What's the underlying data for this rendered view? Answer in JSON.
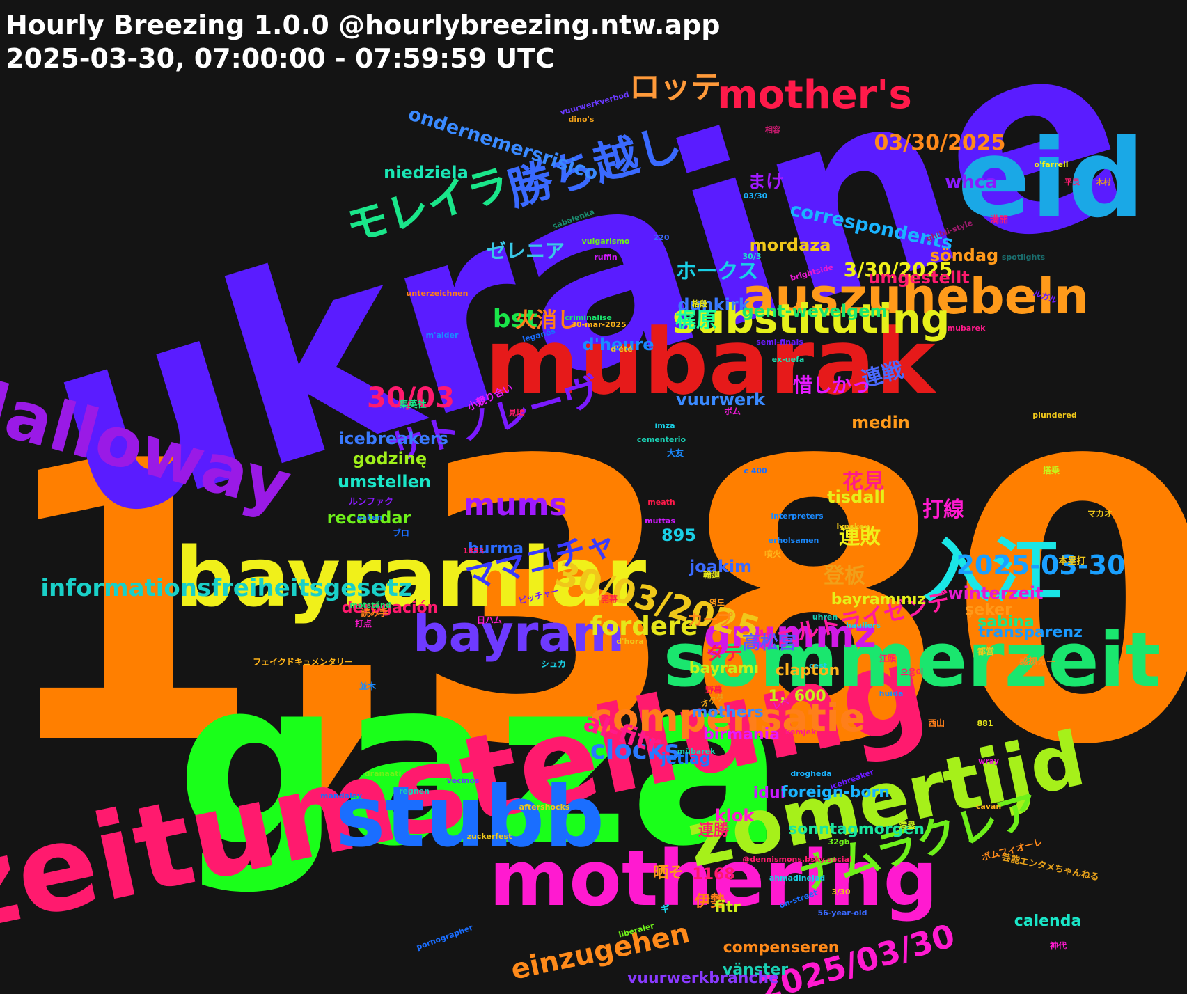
{
  "header": {
    "title": "Hourly Breezing 1.0.0 @hourlybreezing.ntw.app",
    "subtitle": "2025-03-30, 07:00:00 - 07:59:59 UTC"
  },
  "words": [
    {
      "text": "1,380",
      "color": "#ff7f00"
    },
    {
      "text": "ukraine",
      "color": "#5a1cff"
    },
    {
      "text": "gaza",
      "color": "#1aff1a"
    },
    {
      "text": "zeitumstellung",
      "color": "#ff1a6e"
    },
    {
      "text": "eid",
      "color": "#1aa8e6"
    },
    {
      "text": "mubarak",
      "color": "#e61a1a"
    },
    {
      "text": "bayramlar",
      "color": "#f0f01a"
    },
    {
      "text": "dalloway",
      "color": "#9a1ae6"
    },
    {
      "text": "sommerzeit",
      "color": "#1ae66e"
    },
    {
      "text": "mothering",
      "color": "#ff1ad0"
    },
    {
      "text": "stubb",
      "color": "#1a6eff"
    },
    {
      "text": "zomertijd",
      "color": "#a6f01a"
    },
    {
      "text": "入江",
      "color": "#1ae6e6"
    },
    {
      "text": "auszuhebeln",
      "color": "#ff9a1a"
    },
    {
      "text": "mother's",
      "color": "#ff1a4a"
    },
    {
      "text": "bayram",
      "color": "#6e3aff"
    },
    {
      "text": "substituting",
      "color": "#e6f01a"
    },
    {
      "text": "grummz",
      "color": "#d01ae6"
    },
    {
      "text": "compensatie",
      "color": "#ff7f1a"
    },
    {
      "text": "ナムラクレア",
      "color": "#6ef01a"
    },
    {
      "text": "勝ち越し",
      "color": "#3a6aff"
    },
    {
      "text": "モレイラ",
      "color": "#1ae68a"
    },
    {
      "text": "mums",
      "color": "#a01aff"
    },
    {
      "text": "30/03/2025",
      "color": "#f0c81a"
    },
    {
      "text": "informationsfreiheitsgesetz",
      "color": "#1ad0c8"
    },
    {
      "text": "サトノレーヴ",
      "color": "#7a1aff"
    },
    {
      "text": "ロッテ",
      "color": "#ff9a3a"
    },
    {
      "text": "fordere",
      "color": "#e6e61a"
    },
    {
      "text": "2025-03-30",
      "color": "#1aa0ff"
    },
    {
      "text": "ママコチャ",
      "color": "#3a3aff"
    },
    {
      "text": "clocks",
      "color": "#2a7aff"
    },
    {
      "text": "einzugehen",
      "color": "#ff8a1a"
    },
    {
      "text": "2025/03/30",
      "color": "#ff1ad0"
    },
    {
      "text": "al-fitr",
      "color": "#ff1a8a"
    },
    {
      "text": "bst",
      "color": "#1ae64a"
    },
    {
      "text": "30/03",
      "color": "#ff1a6e"
    },
    {
      "text": "03/30/2025",
      "color": "#ff8a1a"
    },
    {
      "text": "ondernemersrisico",
      "color": "#3a8aff"
    },
    {
      "text": "3/30/2025",
      "color": "#f0f01a"
    },
    {
      "text": "ゼレニア",
      "color": "#3ac8e6"
    },
    {
      "text": "correspondents",
      "color": "#1ab4ff"
    },
    {
      "text": "ヴェルトライゼンデ",
      "color": "#ff1aa0"
    },
    {
      "text": "花見",
      "color": "#ff1a8a"
    },
    {
      "text": "連敗",
      "color": "#f0f01a"
    },
    {
      "text": "打線",
      "color": "#ff1ad0"
    },
    {
      "text": "登板",
      "color": "#f0a01a"
    },
    {
      "text": "連戦",
      "color": "#4a6aff"
    },
    {
      "text": "惜しかっ",
      "color": "#e61aff"
    },
    {
      "text": "火消し",
      "color": "#ff7f1a"
    },
    {
      "text": "梶原",
      "color": "#1aff9a"
    },
    {
      "text": "ホークス",
      "color": "#1ad0e6"
    },
    {
      "text": "まけ",
      "color": "#a01aff"
    },
    {
      "text": "whca",
      "color": "#8a1aff"
    },
    {
      "text": "niedziela",
      "color": "#1ae6b4"
    },
    {
      "text": "mordaza",
      "color": "#f0c81a"
    },
    {
      "text": "umgestellt",
      "color": "#ff1a6e"
    },
    {
      "text": "söndag",
      "color": "#ff9a1a"
    },
    {
      "text": "dunkirk",
      "color": "#3a7aff"
    },
    {
      "text": "gent-wevelgem",
      "color": "#1ae66e"
    },
    {
      "text": "d'heure",
      "color": "#1a8aff"
    },
    {
      "text": "vuurwerk",
      "color": "#3a8aff"
    },
    {
      "text": "icebreakers",
      "color": "#3a7aff"
    },
    {
      "text": "godzinę",
      "color": "#a0f01a"
    },
    {
      "text": "umstellen",
      "color": "#1ae6c8"
    },
    {
      "text": "medin",
      "color": "#ff9a1a"
    },
    {
      "text": "tisdall",
      "color": "#e6f01a"
    },
    {
      "text": "recaudar",
      "color": "#6ef01a"
    },
    {
      "text": "895",
      "color": "#1ad0e6"
    },
    {
      "text": "burma",
      "color": "#2a6aff"
    },
    {
      "text": "joakim",
      "color": "#3a6aff"
    },
    {
      "text": "winterzeit",
      "color": "#e61ad0"
    },
    {
      "text": "bayramınız",
      "color": "#e6f01a"
    },
    {
      "text": "derogación",
      "color": "#ff1a6e"
    },
    {
      "text": "şeker",
      "color": "#ff9a1a"
    },
    {
      "text": "transparenz",
      "color": "#1a9aff"
    },
    {
      "text": "sabina",
      "color": "#1ae68a"
    },
    {
      "text": "カープ",
      "color": "#ff8a1a"
    },
    {
      "text": "タテ",
      "color": "#ff1a4a"
    },
    {
      "text": "高松宮",
      "color": "#5a5aff"
    },
    {
      "text": "bayramı",
      "color": "#c8f01a"
    },
    {
      "text": "clapton",
      "color": "#ffb41a"
    },
    {
      "text": "1，600",
      "color": "#c8f01a"
    },
    {
      "text": "mothers",
      "color": "#3a8aff"
    },
    {
      "text": "birmania",
      "color": "#e61aff"
    },
    {
      "text": "jetlag",
      "color": "#1a7aff"
    },
    {
      "text": "klok",
      "color": "#ff1ad0"
    },
    {
      "text": "連勝",
      "color": "#ff1a6e"
    },
    {
      "text": "sonntagmorgen",
      "color": "#1ae6a0"
    },
    {
      "text": "idul",
      "color": "#c81aff"
    },
    {
      "text": "1168",
      "color": "#ff1a6e"
    },
    {
      "text": "晒そ",
      "color": "#ff9a1a"
    },
    {
      "text": "伊勢",
      "color": "#ff7f1a"
    },
    {
      "text": "foreign-born",
      "color": "#1ab4ff"
    },
    {
      "text": "fitr",
      "color": "#d0f01a"
    },
    {
      "text": "calenda",
      "color": "#1ae6c8"
    },
    {
      "text": "compenseren",
      "color": "#ff8a1a"
    },
    {
      "text": "vänster",
      "color": "#1ad0b4"
    },
    {
      "text": "vuurwerkbranche",
      "color": "#8a3aff"
    },
    {
      "text": "vuurwerkverbod",
      "color": "#6a3aff"
    },
    {
      "text": "dino's",
      "color": "#f0a01a"
    },
    {
      "text": "相容",
      "color": "#c81a6e"
    },
    {
      "text": "o'farrell",
      "color": "#f0f01a"
    },
    {
      "text": "03/30",
      "color": "#1ab4ff"
    },
    {
      "text": "平良",
      "color": "#ff1a6e"
    },
    {
      "text": "木村",
      "color": "#e6a01a"
    },
    {
      "text": "sabalenka",
      "color": "#1a8a6e"
    },
    {
      "text": "ghibli-style",
      "color": "#a01a6e"
    },
    {
      "text": "満開",
      "color": "#ff1a6e"
    },
    {
      "text": "vulgarismo",
      "color": "#6ef01a"
    },
    {
      "text": "220",
      "color": "#3a6aff"
    },
    {
      "text": "ruffin",
      "color": "#d01aff"
    },
    {
      "text": "30/3",
      "color": "#1ae6c8"
    },
    {
      "text": "brightside",
      "color": "#e61ad0"
    },
    {
      "text": "spotlights",
      "color": "#1a6e6e"
    },
    {
      "text": "unterzeichnen",
      "color": "#ff7f1a"
    },
    {
      "text": "ルガル",
      "color": "#6a1aff"
    },
    {
      "text": "格段",
      "color": "#e6e61a"
    },
    {
      "text": "30-mar-2025",
      "color": "#ffb41a"
    },
    {
      "text": "m'aider",
      "color": "#1a8aff"
    },
    {
      "text": "leganés",
      "color": "#1a6eff"
    },
    {
      "text": "criminalise",
      "color": "#1ae66e"
    },
    {
      "text": "mubarek",
      "color": "#ff1a8a"
    },
    {
      "text": "semi-finals",
      "color": "#6a1aff"
    },
    {
      "text": "d'été",
      "color": "#f0c81a"
    },
    {
      "text": "ex-uefa",
      "color": "#1ae6b4"
    },
    {
      "text": "小競り合い",
      "color": "#e61aff"
    },
    {
      "text": "集英社",
      "color": "#1ae68a"
    },
    {
      "text": "見頃",
      "color": "#ff1a6e"
    },
    {
      "text": "ボム",
      "color": "#e61ad0"
    },
    {
      "text": "plundered",
      "color": "#f0c81a"
    },
    {
      "text": "imza",
      "color": "#1ad0e6"
    },
    {
      "text": "cementerio",
      "color": "#1ad0b4"
    },
    {
      "text": "大友",
      "color": "#1a8aff"
    },
    {
      "text": "搭乗",
      "color": "#c8f01a"
    },
    {
      "text": "c 400",
      "color": "#1a6eff"
    },
    {
      "text": "ルンファク",
      "color": "#8a1aff"
    },
    {
      "text": "meath",
      "color": "#ff1a4a"
    },
    {
      "text": "esken",
      "color": "#1a8aff"
    },
    {
      "text": "interpreters",
      "color": "#1a8aff"
    },
    {
      "text": "lynskey",
      "color": "#f0c81a"
    },
    {
      "text": "muttas",
      "color": "#d01aff"
    },
    {
      "text": "マカオ",
      "color": "#f0c81a"
    },
    {
      "text": "erholsamen",
      "color": "#1a8aff"
    },
    {
      "text": "ブロ",
      "color": "#1a6eff"
    },
    {
      "text": "噴火",
      "color": "#ffb41a"
    },
    {
      "text": "1853",
      "color": "#ff1a6e"
    },
    {
      "text": "本塁打",
      "color": "#f0c81a"
    },
    {
      "text": "輪廻",
      "color": "#e6e61a"
    },
    {
      "text": "開幕",
      "color": "#ff1a4a"
    },
    {
      "text": "ピッチャー",
      "color": "#6a1aff"
    },
    {
      "text": "motstånd",
      "color": "#1ae66e"
    },
    {
      "text": "영도",
      "color": "#ff9a1a"
    },
    {
      "text": "読み手",
      "color": "#ff7f1a"
    },
    {
      "text": "uhren",
      "color": "#1ad0b4"
    },
    {
      "text": "hauliers",
      "color": "#1ad0e6"
    },
    {
      "text": "打点",
      "color": "#ff1ad0"
    },
    {
      "text": "日ハム",
      "color": "#ff1ad0"
    },
    {
      "text": "d'hora",
      "color": "#f0c81a"
    },
    {
      "text": "都営",
      "color": "#f0c81a"
    },
    {
      "text": "江頭",
      "color": "#ff1a6e"
    },
    {
      "text": "感想えー",
      "color": "#ff8a1a"
    },
    {
      "text": "フェイクドキュメンタリー",
      "color": "#ffb41a"
    },
    {
      "text": "シュカ",
      "color": "#1ad0e6"
    },
    {
      "text": "cest",
      "color": "#1ad0e6"
    },
    {
      "text": "으응이",
      "color": "#ff1a6e"
    },
    {
      "text": "並木",
      "color": "#1a8aff"
    },
    {
      "text": "野暮",
      "color": "#ff1a4a"
    },
    {
      "text": "huida",
      "color": "#1a8aff"
    },
    {
      "text": "オクタ",
      "color": "#e6a01a"
    },
    {
      "text": "レベ",
      "color": "#e61ad0"
    },
    {
      "text": "西山",
      "color": "#ff7f1a"
    },
    {
      "text": "881",
      "color": "#e6e61a"
    },
    {
      "text": "komjek",
      "color": "#ff1a8a"
    },
    {
      "text": "wray",
      "color": "#e61ad0"
    },
    {
      "text": "mübarek",
      "color": "#1ad0b4"
    },
    {
      "text": "dranaati",
      "color": "#6ef01a"
    },
    {
      "text": "icebreaker",
      "color": "#6a1aff"
    },
    {
      "text": "drogheda",
      "color": "#1ab4ff"
    },
    {
      "text": "vecinos",
      "color": "#6a3aff"
    },
    {
      "text": "regnen",
      "color": "#1ad0b4"
    },
    {
      "text": "mandalay",
      "color": "#1a6eff"
    },
    {
      "text": "cavan",
      "color": "#ffb41a"
    },
    {
      "text": "aftershocks",
      "color": "#f0c81a"
    },
    {
      "text": "満塁",
      "color": "#c8f01a"
    },
    {
      "text": "zuckerfest",
      "color": "#f0c81a"
    },
    {
      "text": "32gb",
      "color": "#6ef01a"
    },
    {
      "text": "芸能エンタメちゃんねる",
      "color": "#e6a01a"
    },
    {
      "text": "ボムフィオーレ",
      "color": "#ff8a1a"
    },
    {
      "text": "@dennismons.bsky.social",
      "color": "#ff1a6e"
    },
    {
      "text": "ahmadinejad",
      "color": "#1ad0e6"
    },
    {
      "text": "on-street",
      "color": "#1a6eff"
    },
    {
      "text": "3/30",
      "color": "#f0c81a"
    },
    {
      "text": "56-year-old",
      "color": "#3a6aff"
    },
    {
      "text": "ギ",
      "color": "#1ad0e6"
    },
    {
      "text": "liberaler",
      "color": "#6ef01a"
    },
    {
      "text": "pornographer",
      "color": "#1a6eff"
    },
    {
      "text": "神代",
      "color": "#ff1ad0"
    }
  ]
}
